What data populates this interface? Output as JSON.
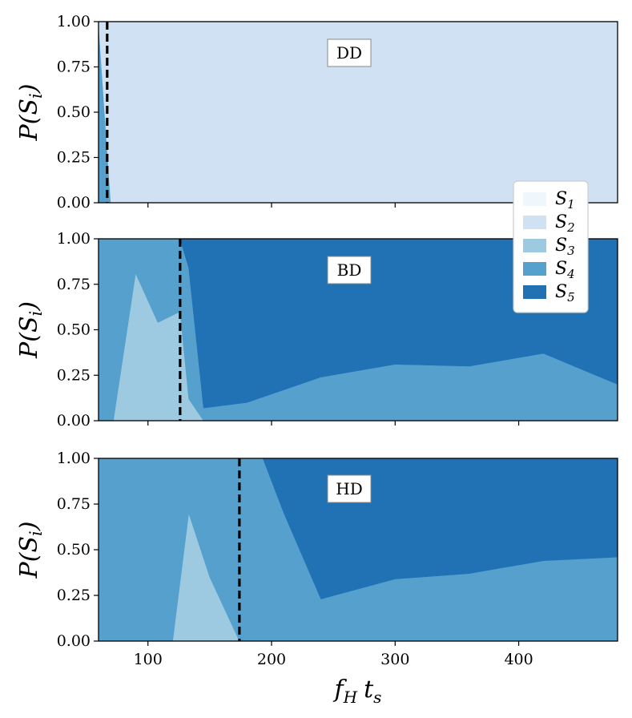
{
  "chart_data": {
    "type": "area",
    "stacked": true,
    "xlabel": "f_H t_s",
    "xlim": [
      60,
      480
    ],
    "xticks": [
      100,
      200,
      300,
      400
    ],
    "ylim": [
      0,
      1
    ],
    "yticks": [
      0.0,
      0.25,
      0.5,
      0.75,
      1.0
    ],
    "ytick_labels": [
      "0.00",
      "0.25",
      "0.50",
      "0.75",
      "1.00"
    ],
    "ylabel": "P(S_i)",
    "legend": {
      "position": "right, between top and middle panels",
      "entries": [
        {
          "label": "S",
          "sub": "1",
          "color": "#eff6fc"
        },
        {
          "label": "S",
          "sub": "2",
          "color": "#cfe1f2"
        },
        {
          "label": "S",
          "sub": "3",
          "color": "#9ecae1"
        },
        {
          "label": "S",
          "sub": "4",
          "color": "#56a0ce"
        },
        {
          "label": "S",
          "sub": "5",
          "color": "#2171b5"
        }
      ]
    },
    "panels": [
      {
        "label": "DD",
        "vline": 67,
        "series": [
          {
            "state": "S4",
            "x": [
              60,
              70,
              72,
              480
            ],
            "y": [
              1.0,
              0.0,
              0.0,
              0.0
            ]
          },
          {
            "state": "S2",
            "x": [
              60,
              70,
              72,
              480
            ],
            "y": [
              0.0,
              1.0,
              1.0,
              1.0
            ]
          }
        ]
      },
      {
        "label": "BD",
        "vline": 126,
        "series": [
          {
            "state": "S3",
            "x": [
              60,
              72,
              90,
              108,
              126,
              133,
              145,
              180,
              240,
              300,
              360,
              420,
              480
            ],
            "y": [
              0,
              0,
              0.81,
              0.54,
              0.6,
              0.12,
              0,
              0,
              0,
              0,
              0,
              0,
              0
            ]
          },
          {
            "state": "S4",
            "x": [
              60,
              72,
              90,
              108,
              126,
              133,
              145,
              180,
              240,
              300,
              360,
              420,
              480
            ],
            "y": [
              1.0,
              1.0,
              0.19,
              0.46,
              0.4,
              0.72,
              0.07,
              0.1,
              0.24,
              0.31,
              0.3,
              0.37,
              0.2
            ]
          },
          {
            "state": "S5",
            "x": [
              60,
              72,
              90,
              108,
              126,
              133,
              145,
              180,
              240,
              300,
              360,
              420,
              480
            ],
            "y": [
              0,
              0,
              0,
              0,
              0,
              0.16,
              0.93,
              0.9,
              0.76,
              0.69,
              0.7,
              0.63,
              0.8
            ]
          }
        ]
      },
      {
        "label": "HD",
        "vline": 174,
        "series": [
          {
            "state": "S3",
            "x": [
              60,
              120,
              133,
              150,
              174,
              180,
              193,
              210,
              240,
              300,
              360,
              420,
              480
            ],
            "y": [
              0,
              0,
              0.7,
              0.35,
              0,
              0,
              0,
              0,
              0,
              0,
              0,
              0,
              0
            ]
          },
          {
            "state": "S4",
            "x": [
              60,
              120,
              133,
              150,
              174,
              180,
              193,
              210,
              240,
              300,
              360,
              420,
              480
            ],
            "y": [
              1.0,
              1.0,
              0.3,
              0.65,
              1.0,
              1.0,
              1.0,
              0.7,
              0.23,
              0.34,
              0.37,
              0.44,
              0.46
            ]
          },
          {
            "state": "S5",
            "x": [
              60,
              120,
              133,
              150,
              174,
              180,
              193,
              210,
              240,
              300,
              360,
              420,
              480
            ],
            "y": [
              0,
              0,
              0,
              0,
              0,
              0,
              0,
              0.3,
              0.77,
              0.66,
              0.63,
              0.56,
              0.54
            ]
          }
        ]
      }
    ]
  }
}
